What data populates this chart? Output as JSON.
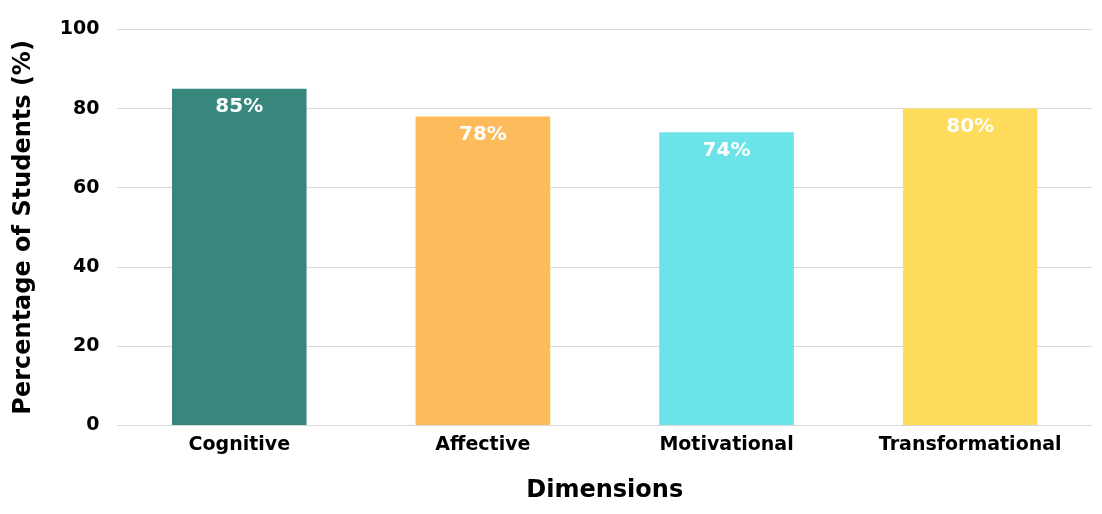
{
  "chart_data": {
    "type": "bar",
    "xlabel": "Dimensions",
    "ylabel": "Percentage of Students (%)",
    "categories": [
      "Cognitive",
      "Affective",
      "Motivational",
      "Transformational"
    ],
    "values": [
      85,
      78,
      74,
      80
    ],
    "colors": [
      "#37877d",
      "#fdbb5b",
      "#6be3e8",
      "#fedd5c"
    ],
    "value_labels": [
      "85%",
      "78%",
      "74%",
      "80%"
    ],
    "ylim": [
      0,
      100
    ],
    "yticks": [
      0,
      20,
      40,
      60,
      80,
      100
    ],
    "grid": "y"
  }
}
